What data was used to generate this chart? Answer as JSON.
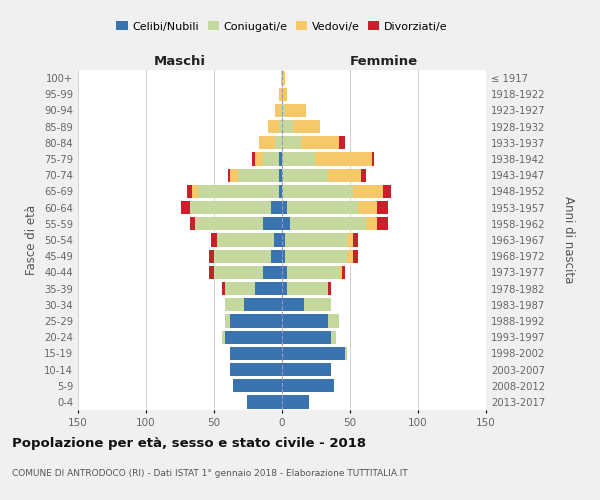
{
  "age_groups": [
    "0-4",
    "5-9",
    "10-14",
    "15-19",
    "20-24",
    "25-29",
    "30-34",
    "35-39",
    "40-44",
    "45-49",
    "50-54",
    "55-59",
    "60-64",
    "65-69",
    "70-74",
    "75-79",
    "80-84",
    "85-89",
    "90-94",
    "95-99",
    "100+"
  ],
  "birth_years": [
    "2013-2017",
    "2008-2012",
    "2003-2007",
    "1998-2002",
    "1993-1997",
    "1988-1992",
    "1983-1987",
    "1978-1982",
    "1973-1977",
    "1968-1972",
    "1963-1967",
    "1958-1962",
    "1953-1957",
    "1948-1952",
    "1943-1947",
    "1938-1942",
    "1933-1937",
    "1928-1932",
    "1923-1927",
    "1918-1922",
    "≤ 1917"
  ],
  "colors": {
    "celibi": "#3B72B0",
    "coniugati": "#C5D89D",
    "vedovi": "#F5C96A",
    "divorziati": "#C8212B"
  },
  "maschi": {
    "celibi": [
      26,
      36,
      38,
      38,
      42,
      38,
      28,
      20,
      14,
      8,
      6,
      14,
      8,
      2,
      2,
      2,
      0,
      0,
      0,
      0,
      0
    ],
    "coniugati": [
      0,
      0,
      0,
      0,
      2,
      4,
      14,
      22,
      36,
      42,
      42,
      50,
      60,
      60,
      30,
      12,
      5,
      2,
      1,
      0,
      0
    ],
    "vedovi": [
      0,
      0,
      0,
      0,
      0,
      0,
      0,
      0,
      0,
      0,
      0,
      0,
      0,
      4,
      6,
      6,
      12,
      8,
      4,
      2,
      1
    ],
    "divorziati": [
      0,
      0,
      0,
      0,
      0,
      0,
      0,
      2,
      4,
      4,
      4,
      4,
      6,
      4,
      2,
      2,
      0,
      0,
      0,
      0,
      0
    ]
  },
  "femmine": {
    "nubili": [
      20,
      38,
      36,
      46,
      36,
      34,
      16,
      4,
      4,
      2,
      2,
      6,
      4,
      0,
      0,
      0,
      0,
      0,
      0,
      0,
      0
    ],
    "coniugate": [
      0,
      0,
      0,
      2,
      4,
      8,
      20,
      30,
      38,
      46,
      46,
      56,
      52,
      52,
      34,
      24,
      14,
      8,
      2,
      0,
      0
    ],
    "vedove": [
      0,
      0,
      0,
      0,
      0,
      0,
      0,
      0,
      2,
      4,
      4,
      8,
      14,
      22,
      24,
      42,
      28,
      20,
      16,
      4,
      2
    ],
    "divorziate": [
      0,
      0,
      0,
      0,
      0,
      0,
      0,
      2,
      2,
      4,
      4,
      8,
      8,
      6,
      4,
      2,
      4,
      0,
      0,
      0,
      0
    ]
  },
  "xlim": 150,
  "title": "Popolazione per età, sesso e stato civile - 2018",
  "subtitle": "COMUNE DI ANTRODOCO (RI) - Dati ISTAT 1° gennaio 2018 - Elaborazione TUTTITALIA.IT",
  "xlabel_left": "Maschi",
  "xlabel_right": "Femmine",
  "ylabel_left": "Fasce di età",
  "ylabel_right": "Anni di nascita",
  "bg_color": "#f0f0f0",
  "plot_bg": "#ffffff",
  "grid_color": "#cccccc",
  "tick_color": "#666666"
}
